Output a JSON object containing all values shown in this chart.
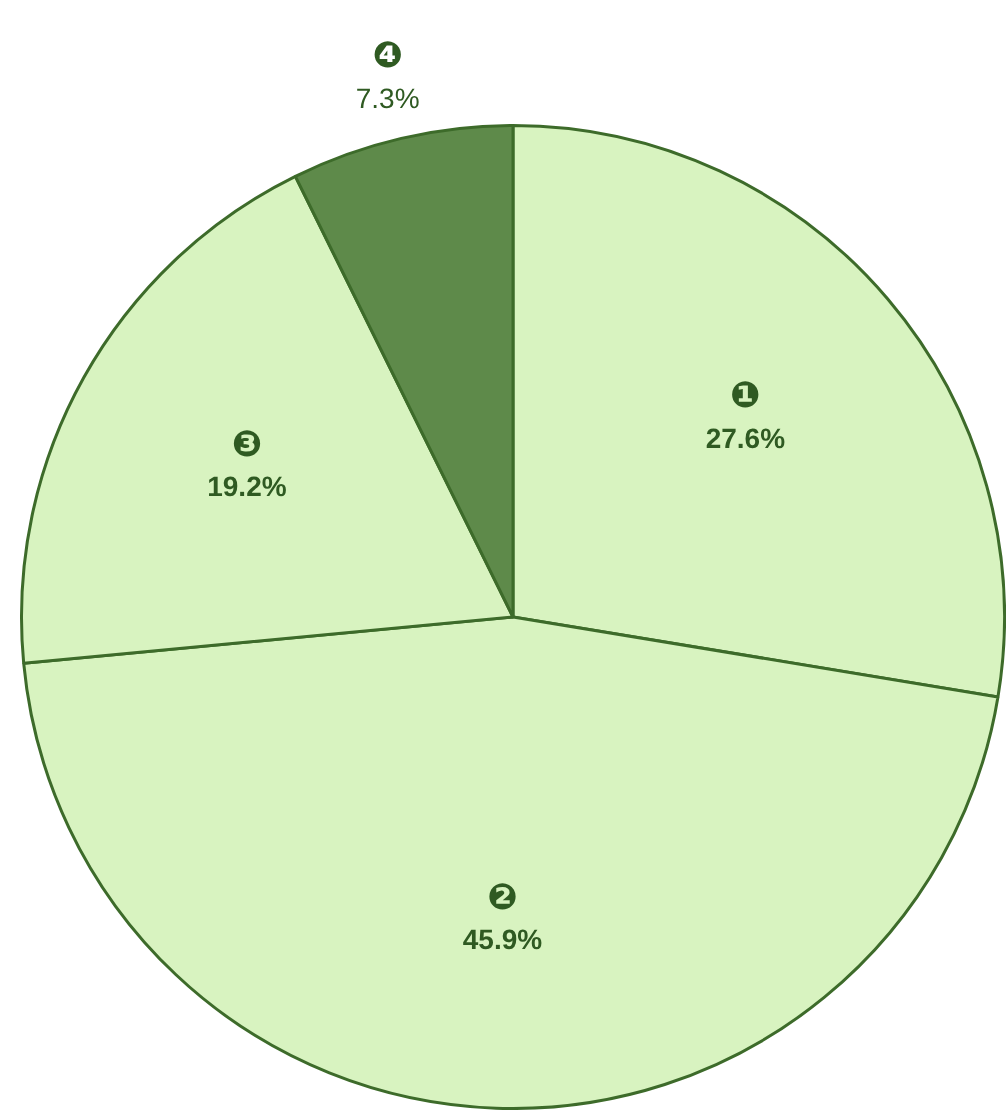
{
  "chart_data": {
    "type": "pie",
    "categories": [
      "❶",
      "❷",
      "❸",
      "❹"
    ],
    "values": [
      27.6,
      45.9,
      19.2,
      7.3
    ],
    "value_labels": [
      "27.6%",
      "45.9%",
      "19.2%",
      "7.3%"
    ],
    "colors": [
      "#d8f3c0",
      "#d8f3c0",
      "#d8f3c0",
      "#5e8a4a"
    ],
    "legend": false
  }
}
